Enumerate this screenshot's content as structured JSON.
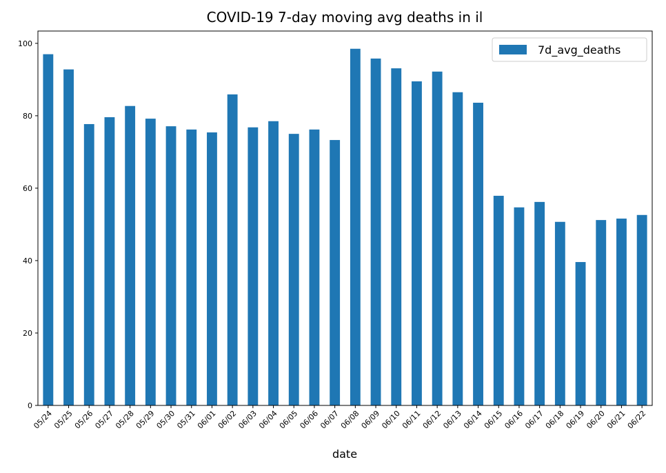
{
  "chart_data": {
    "type": "bar",
    "title": "COVID-19 7-day moving avg deaths in il",
    "xlabel": "date",
    "categories": [
      "05/24",
      "05/25",
      "05/26",
      "05/27",
      "05/28",
      "05/29",
      "05/30",
      "05/31",
      "06/01",
      "06/02",
      "06/03",
      "06/04",
      "06/05",
      "06/06",
      "06/07",
      "06/08",
      "06/09",
      "06/10",
      "06/11",
      "06/12",
      "06/13",
      "06/14",
      "06/15",
      "06/16",
      "06/17",
      "06/18",
      "06/19",
      "06/20",
      "06/21",
      "06/22"
    ],
    "series": [
      {
        "name": "7d_avg_deaths",
        "color": "#1f77b4",
        "values": [
          97,
          92.8,
          77.7,
          79.6,
          82.7,
          79.2,
          77.1,
          76.2,
          75.4,
          85.9,
          76.8,
          78.5,
          75.0,
          76.2,
          73.3,
          98.5,
          95.8,
          93.1,
          89.5,
          92.2,
          86.5,
          83.6,
          57.9,
          54.7,
          56.2,
          50.7,
          39.6,
          51.2,
          51.6,
          52.6
        ]
      }
    ],
    "ylim": [
      0,
      103.4
    ],
    "yticks": [
      0,
      20,
      40,
      60,
      80,
      100
    ],
    "legend": "upper right"
  }
}
